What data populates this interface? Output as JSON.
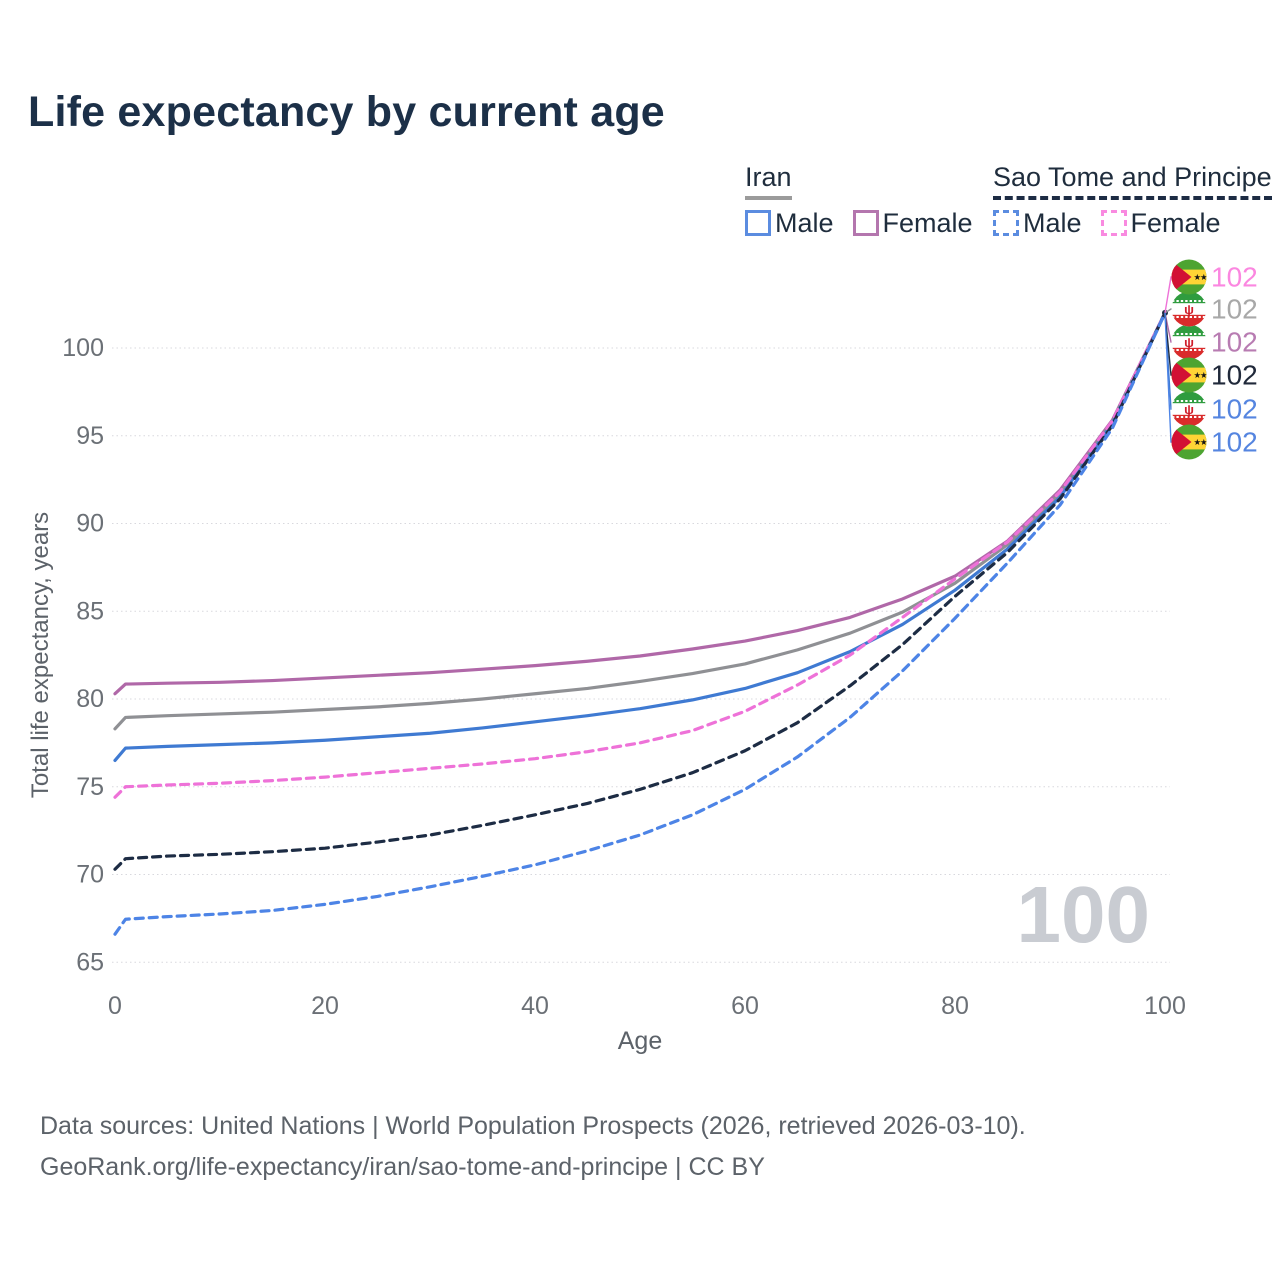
{
  "header": {
    "title": "Life expectancy by current age"
  },
  "legend": {
    "groups": [
      {
        "label": "Iran",
        "underline_color": "#9b9b9b",
        "underline_style": "solid",
        "items": [
          {
            "label": "Male",
            "color": "#5b8ce0",
            "dashed": false
          },
          {
            "label": "Female",
            "color": "#b476ae",
            "dashed": false
          }
        ]
      },
      {
        "label": "Sao Tome and Principe",
        "underline_color": "#1d2c44",
        "underline_style": "dashed",
        "items": [
          {
            "label": "Male",
            "color": "#5b8ce0",
            "dashed": true
          },
          {
            "label": "Female",
            "color": "#f98ae0",
            "dashed": true
          }
        ]
      }
    ]
  },
  "chart_data": {
    "type": "line",
    "title": "Life expectancy by current age",
    "xlabel": "Age",
    "ylabel": "Total life expectancy, years",
    "x_ticks": [
      0,
      20,
      40,
      60,
      80,
      100
    ],
    "y_ticks": [
      65,
      70,
      75,
      80,
      85,
      90,
      95,
      100
    ],
    "xlim": [
      0,
      100
    ],
    "ylim": [
      65,
      103
    ],
    "grid": true,
    "legend_position": "top-right",
    "frame_label": "100",
    "x": [
      0,
      1,
      5,
      10,
      15,
      20,
      25,
      30,
      35,
      40,
      45,
      50,
      55,
      60,
      65,
      70,
      75,
      80,
      85,
      90,
      95,
      100
    ],
    "series": [
      {
        "name": "Iran Female",
        "country": "Iran",
        "sex": "Female",
        "color": "#b068a8",
        "dashed": false,
        "flag": "iran",
        "end_label": "102",
        "end_label_color": "#b87cb2",
        "label_row": 2,
        "values": [
          80.3,
          80.85,
          80.9,
          80.95,
          81.05,
          81.2,
          81.35,
          81.5,
          81.7,
          81.9,
          82.15,
          82.45,
          82.85,
          83.3,
          83.9,
          84.65,
          85.7,
          87.0,
          89.0,
          91.9,
          95.9,
          102
        ]
      },
      {
        "name": "Iran Both sexes",
        "country": "Iran",
        "sex": "Both",
        "color": "#8f9094",
        "dashed": false,
        "flag": "iran",
        "end_label": "102",
        "end_label_color": "#a8a8a8",
        "label_row": 1,
        "values": [
          78.3,
          78.95,
          79.05,
          79.15,
          79.25,
          79.4,
          79.55,
          79.75,
          80.0,
          80.3,
          80.6,
          81.0,
          81.45,
          82.0,
          82.8,
          83.75,
          84.95,
          86.6,
          88.8,
          91.7,
          95.8,
          102
        ]
      },
      {
        "name": "Iran Male",
        "country": "Iran",
        "sex": "Male",
        "color": "#3f7ad2",
        "dashed": false,
        "flag": "iran",
        "end_label": "102",
        "end_label_color": "#5585e0",
        "label_row": 4,
        "values": [
          76.5,
          77.2,
          77.3,
          77.4,
          77.5,
          77.65,
          77.85,
          78.05,
          78.35,
          78.7,
          79.05,
          79.45,
          79.95,
          80.6,
          81.5,
          82.7,
          84.25,
          86.2,
          88.55,
          91.5,
          95.7,
          102
        ]
      },
      {
        "name": "Sao Tome and Principe Female",
        "country": "Sao Tome and Principe",
        "sex": "Female",
        "color": "#ee72d8",
        "dashed": true,
        "flag": "st",
        "end_label": "102",
        "end_label_color": "#fb87e0",
        "label_row": 0,
        "values": [
          74.4,
          75.0,
          75.1,
          75.2,
          75.35,
          75.55,
          75.8,
          76.05,
          76.3,
          76.6,
          77.0,
          77.5,
          78.2,
          79.3,
          80.8,
          82.5,
          84.65,
          86.85,
          88.95,
          91.8,
          95.85,
          102
        ]
      },
      {
        "name": "Sao Tome and Principe Both sexes",
        "country": "Sao Tome and Principe",
        "sex": "Both",
        "color": "#1d2c44",
        "dashed": true,
        "flag": "st",
        "end_label": "102",
        "end_label_color": "#20293a",
        "label_row": 3,
        "values": [
          70.3,
          70.9,
          71.05,
          71.15,
          71.3,
          71.5,
          71.85,
          72.25,
          72.8,
          73.4,
          74.05,
          74.85,
          75.8,
          77.05,
          78.65,
          80.75,
          83.1,
          85.85,
          88.35,
          91.4,
          95.6,
          102
        ]
      },
      {
        "name": "Sao Tome and Principe Male",
        "country": "Sao Tome and Principe",
        "sex": "Male",
        "color": "#4d84e6",
        "dashed": true,
        "flag": "st",
        "end_label": "102",
        "end_label_color": "#5585e0",
        "label_row": 5,
        "values": [
          66.6,
          67.45,
          67.6,
          67.75,
          67.95,
          68.3,
          68.75,
          69.3,
          69.9,
          70.55,
          71.35,
          72.25,
          73.4,
          74.85,
          76.7,
          78.95,
          81.6,
          84.6,
          87.75,
          91.05,
          95.45,
          102
        ]
      }
    ]
  },
  "footer": {
    "line1": "Data sources: United Nations | World Population Prospects (2026, retrieved 2026-03-10).",
    "line2": "GeoRank.org/life-expectancy/iran/sao-tome-and-principe | CC BY"
  }
}
